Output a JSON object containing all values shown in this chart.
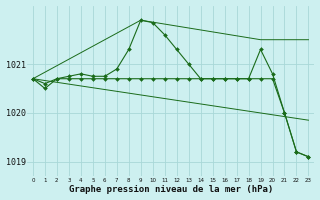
{
  "background_color": "#cdf0f0",
  "grid_color": "#a8d8d8",
  "line_color": "#1a6b1a",
  "xlabel": "Graphe pression niveau de la mer (hPa)",
  "yticks": [
    1019,
    1020,
    1021
  ],
  "xlim": [
    -0.5,
    23.5
  ],
  "ylim": [
    1018.7,
    1022.2
  ],
  "figsize": [
    3.2,
    2.0
  ],
  "dpi": 100,
  "series": {
    "line_flat": {
      "x": [
        0,
        1,
        2,
        3,
        4,
        5,
        6,
        7,
        8,
        9,
        10,
        11,
        12,
        13,
        14,
        15,
        16,
        17,
        18,
        19,
        20,
        21,
        22,
        23
      ],
      "y": [
        1020.7,
        1020.5,
        1020.7,
        1020.7,
        1020.7,
        1020.7,
        1020.7,
        1020.7,
        1020.7,
        1020.7,
        1020.7,
        1020.7,
        1020.7,
        1020.7,
        1020.7,
        1020.7,
        1020.7,
        1020.7,
        1020.7,
        1020.7,
        1020.7,
        1020.0,
        1019.2,
        1019.1
      ],
      "has_markers": true
    },
    "line_peak": {
      "x": [
        0,
        1,
        2,
        3,
        4,
        5,
        6,
        7,
        8,
        9,
        10,
        11,
        12,
        13,
        14,
        15,
        16,
        17,
        18,
        19,
        20,
        21,
        22,
        23
      ],
      "y": [
        1020.7,
        1020.6,
        1020.7,
        1020.75,
        1020.8,
        1020.75,
        1020.75,
        1020.9,
        1021.3,
        1021.9,
        1021.85,
        1021.6,
        1021.3,
        1021.0,
        1020.7,
        1020.7,
        1020.7,
        1020.7,
        1020.7,
        1021.3,
        1020.8,
        1020.0,
        1019.2,
        1019.1
      ],
      "has_markers": true
    },
    "line_diagonal_high": {
      "x": [
        0,
        9,
        19,
        23
      ],
      "y": [
        1020.7,
        1021.9,
        1021.5,
        1021.5
      ],
      "has_markers": false
    },
    "line_diagonal_low": {
      "x": [
        0,
        23
      ],
      "y": [
        1020.7,
        1019.85
      ],
      "has_markers": false
    }
  }
}
